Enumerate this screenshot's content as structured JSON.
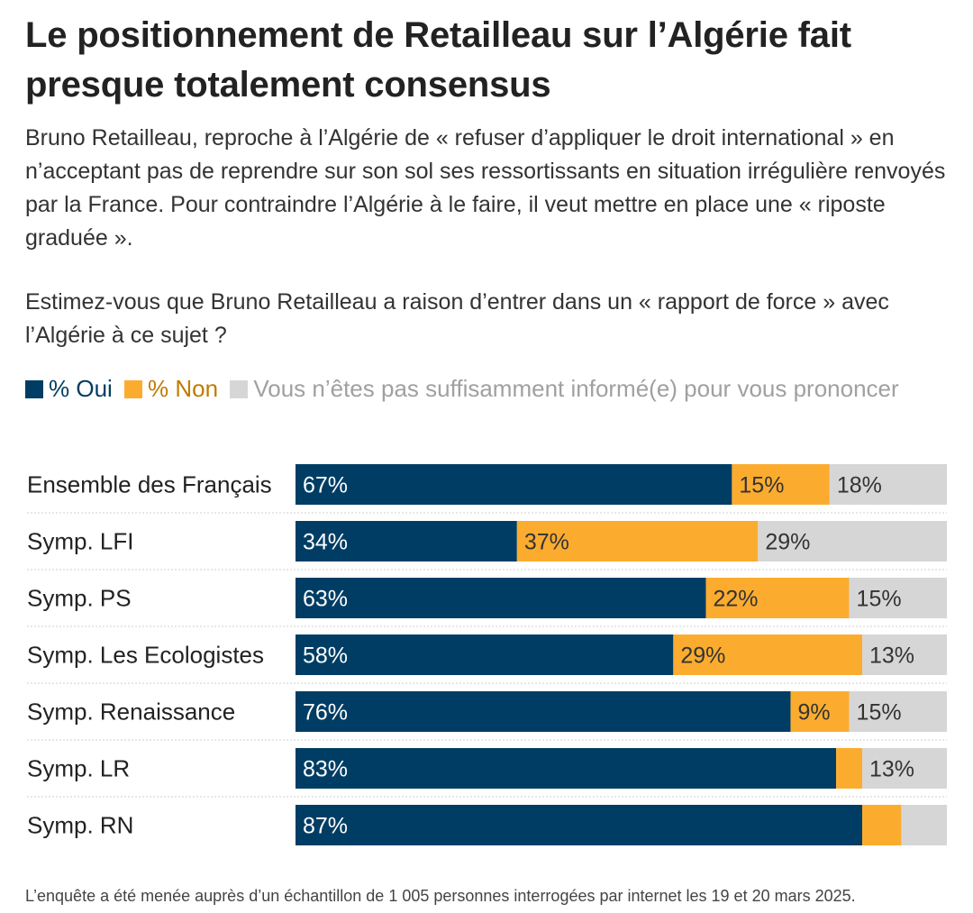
{
  "title": "Le positionnement de Retailleau sur l’Algérie fait presque totalement consensus",
  "subtitle": "Bruno Retailleau, reproche à l’Algérie de « refuser d’appliquer le droit international » en n’acceptant pas de reprendre sur son sol ses ressortissants en situation irrégulière renvoyés par la France. Pour contraindre l’Algérie à le faire, il veut mettre en place une « riposte graduée ».",
  "question": "Estimez-vous que Bruno Retailleau a raison d’entrer dans un « rapport de force » avec l’Algérie à ce sujet ?",
  "legend": {
    "oui": "% Oui",
    "non": "% Non",
    "nsp": "Vous n’êtes pas suffisamment informé(e) pour vous prononcer"
  },
  "footer": "L’enquête a été menée auprès d’un échantillon de 1 005 personnes interrogées par internet les 19 et 20 mars 2025.",
  "colors": {
    "oui": "#003d64",
    "non": "#fbac2f",
    "nsp": "#d6d6d6"
  },
  "chart_data": {
    "type": "bar",
    "orientation": "horizontal",
    "stacked": true,
    "categories": [
      "Ensemble des Français",
      "Symp. LFI",
      "Symp. PS",
      "Symp. Les Ecologistes",
      "Symp. Renaissance",
      "Symp. LR",
      "Symp. RN"
    ],
    "series": [
      {
        "name": "% Oui",
        "values": [
          67,
          34,
          63,
          58,
          76,
          83,
          87
        ],
        "labels": [
          "67%",
          "34%",
          "63%",
          "58%",
          "76%",
          "83%",
          "87%"
        ]
      },
      {
        "name": "% Non",
        "values": [
          15,
          37,
          22,
          29,
          9,
          4,
          6
        ],
        "labels": [
          "15%",
          "37%",
          "22%",
          "29%",
          "9%",
          "",
          ""
        ]
      },
      {
        "name": "Vous n’êtes pas suffisamment informé(e) pour vous prononcer",
        "values": [
          18,
          29,
          15,
          13,
          15,
          13,
          7
        ],
        "labels": [
          "18%",
          "29%",
          "15%",
          "13%",
          "15%",
          "13%",
          ""
        ]
      }
    ],
    "xlim": [
      0,
      100
    ],
    "grid": false,
    "legend_position": "top"
  }
}
